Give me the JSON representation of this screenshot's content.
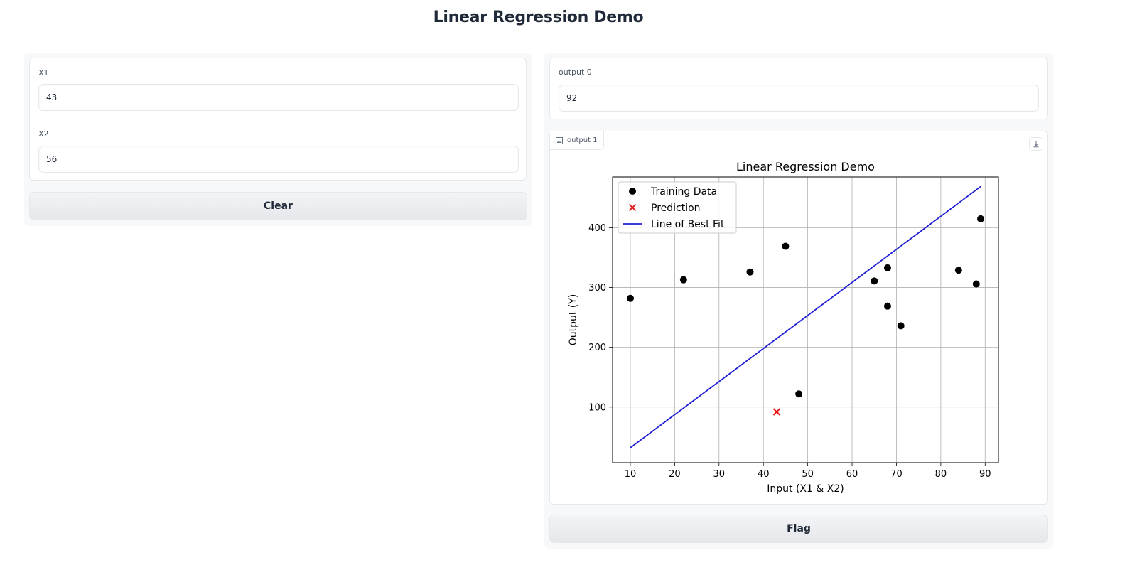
{
  "page": {
    "title": "Linear Regression Demo"
  },
  "inputs": {
    "x1": {
      "label": "X1",
      "value": "43"
    },
    "x2": {
      "label": "X2",
      "value": "56"
    },
    "clear_label": "Clear"
  },
  "outputs": {
    "output0": {
      "label": "output 0",
      "value": "92"
    },
    "output1": {
      "label": "output 1"
    },
    "flag_label": "Flag"
  },
  "icons": {
    "image": "image-icon",
    "download": "download-icon"
  },
  "chart_data": {
    "type": "scatter",
    "title": "Linear Regression Demo",
    "xlabel": "Input (X1 & X2)",
    "ylabel": "Output (Y)",
    "xlim": [
      6,
      93
    ],
    "ylim": [
      7,
      485
    ],
    "xticks": [
      10,
      20,
      30,
      40,
      50,
      60,
      70,
      80,
      90
    ],
    "yticks": [
      100,
      200,
      300,
      400
    ],
    "grid": true,
    "legend": {
      "position": "top-left",
      "entries": [
        "Training Data",
        "Prediction",
        "Line of Best Fit"
      ]
    },
    "series": [
      {
        "name": "Training Data",
        "kind": "scatter",
        "marker": "circle",
        "color": "#000000",
        "points": [
          [
            10,
            282
          ],
          [
            22,
            313
          ],
          [
            37,
            326
          ],
          [
            45,
            369
          ],
          [
            48,
            122
          ],
          [
            65,
            311
          ],
          [
            68,
            333
          ],
          [
            68,
            269
          ],
          [
            71,
            236
          ],
          [
            84,
            329
          ],
          [
            88,
            306
          ],
          [
            89,
            415
          ]
        ]
      },
      {
        "name": "Prediction",
        "kind": "scatter",
        "marker": "x",
        "color": "#e41a1c",
        "points": [
          [
            43,
            92
          ]
        ]
      },
      {
        "name": "Line of Best Fit",
        "kind": "line",
        "color": "#1f1fd6",
        "points": [
          [
            10,
            32
          ],
          [
            89,
            469
          ]
        ]
      }
    ]
  }
}
